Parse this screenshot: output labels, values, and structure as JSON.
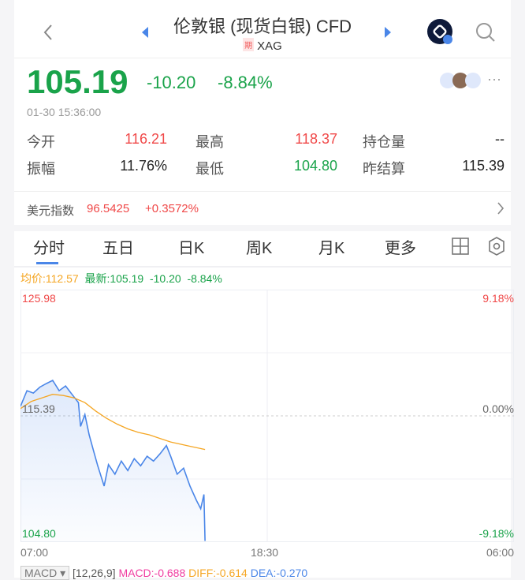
{
  "header": {
    "title": "伦敦银 (现货白银) CFD",
    "symbol": "XAG",
    "tag": "期"
  },
  "quote": {
    "price": "105.19",
    "change": "-10.20",
    "change_pct": "-8.84%",
    "time": "01-30 15:36:00"
  },
  "stats": [
    {
      "label": "今开",
      "value": "116.21",
      "color": "red"
    },
    {
      "label": "最高",
      "value": "118.37",
      "color": "red"
    },
    {
      "label": "持仓量",
      "value": "--",
      "color": "dark"
    },
    {
      "label": "振幅",
      "value": "11.76%",
      "color": "dark"
    },
    {
      "label": "最低",
      "value": "104.80",
      "color": "green"
    },
    {
      "label": "昨结算",
      "value": "115.39",
      "color": "dark"
    }
  ],
  "index": {
    "label": "美元指数",
    "value": "96.5425",
    "change": "+0.3572%"
  },
  "tabs": [
    "分时",
    "五日",
    "日K",
    "周K",
    "月K",
    "更多"
  ],
  "legend": {
    "avg": "均价:112.57",
    "latest": "最新:105.19",
    "change": "-10.20",
    "pct": "-8.84%"
  },
  "chart_data": {
    "type": "line",
    "y_ticks": {
      "top": "125.98",
      "mid": "115.39",
      "bottom": "104.80"
    },
    "pct_ticks": {
      "top": "9.18%",
      "mid": "0.00%",
      "bottom": "-9.18%"
    },
    "x_ticks": [
      "07:00",
      "18:30",
      "06:00"
    ],
    "ylim": [
      104.8,
      125.98
    ],
    "xlim_hours": [
      0,
      23
    ],
    "series": [
      {
        "key": "price",
        "color": "#4a86e8",
        "x": [
          0,
          0.3,
          0.6,
          0.9,
          1.2,
          1.5,
          1.8,
          2.1,
          2.4,
          2.7,
          2.8,
          3.0,
          3.2,
          3.4,
          3.6,
          3.9,
          4.1,
          4.4,
          4.7,
          5.0,
          5.3,
          5.6,
          5.9,
          6.2,
          6.5,
          6.8,
          7.0,
          7.3,
          7.6,
          7.9,
          8.2,
          8.4,
          8.55,
          8.6
        ],
        "y": [
          116.2,
          117.5,
          117.3,
          117.8,
          118.1,
          118.37,
          117.5,
          117.9,
          117.2,
          116.5,
          114.5,
          115.5,
          113.8,
          112.5,
          111.2,
          109.5,
          111.3,
          110.5,
          111.6,
          110.8,
          111.8,
          111.2,
          112.0,
          111.6,
          112.2,
          112.9,
          112.0,
          110.5,
          111.0,
          109.5,
          108.3,
          107.6,
          108.8,
          104.9
        ]
      },
      {
        "key": "avg",
        "color": "#f5a623",
        "x": [
          0,
          0.5,
          1,
          1.5,
          2,
          2.5,
          3,
          3.5,
          4,
          4.5,
          5,
          5.5,
          6,
          6.5,
          7,
          7.5,
          8,
          8.6
        ],
        "y": [
          116.0,
          116.6,
          116.9,
          117.2,
          117.1,
          116.9,
          116.5,
          115.8,
          115.2,
          114.7,
          114.3,
          114.0,
          113.8,
          113.5,
          113.2,
          113.0,
          112.8,
          112.57
        ]
      }
    ]
  },
  "macd": {
    "selector": "MACD",
    "params": "[12,26,9]",
    "macd": "MACD:-0.688",
    "diff": "DIFF:-0.614",
    "dea": "DEA:-0.270"
  }
}
